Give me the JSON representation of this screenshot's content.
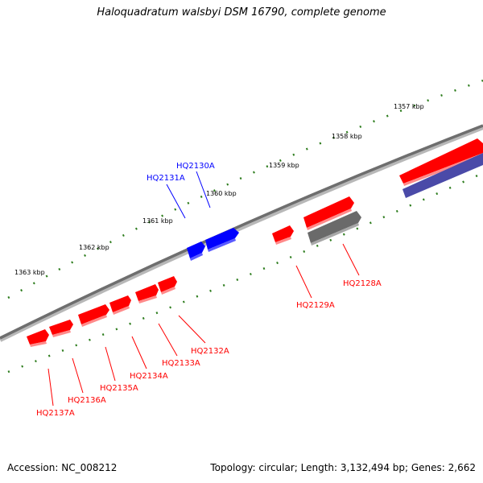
{
  "title": "Haloquadratum walsbyi DSM 16790, complete genome",
  "footer": {
    "accession": "Accession: NC_008212",
    "summary": "Topology: circular; Length: 3,132,494 bp; Genes: 2,662"
  },
  "colors": {
    "backbone": "#7a7a7a",
    "tick": "#2e7d1e",
    "forward_gene": "#ff0000",
    "reverse_gene": "#ff0000",
    "highlight_gene": "#0000ff",
    "grey_feature": "#6a6a6a",
    "purple_feature": "#4a4aa8"
  },
  "scale_labels": [
    "1363 kbp",
    "1362 kbp",
    "1361 kbp",
    "1360 kbp",
    "1359 kbp",
    "1358 kbp",
    "1357 kbp"
  ],
  "genes": [
    {
      "label": "HQ2131A",
      "color": "#0000ff"
    },
    {
      "label": "HQ2130A",
      "color": "#0000ff"
    },
    {
      "label": "HQ2129A",
      "color": "#ff0000"
    },
    {
      "label": "HQ2128A",
      "color": "#ff0000"
    },
    {
      "label": "HQ2132A",
      "color": "#ff0000"
    },
    {
      "label": "HQ2133A",
      "color": "#ff0000"
    },
    {
      "label": "HQ2134A",
      "color": "#ff0000"
    },
    {
      "label": "HQ2135A",
      "color": "#ff0000"
    },
    {
      "label": "HQ2136A",
      "color": "#ff0000"
    },
    {
      "label": "HQ2137A",
      "color": "#ff0000"
    }
  ]
}
